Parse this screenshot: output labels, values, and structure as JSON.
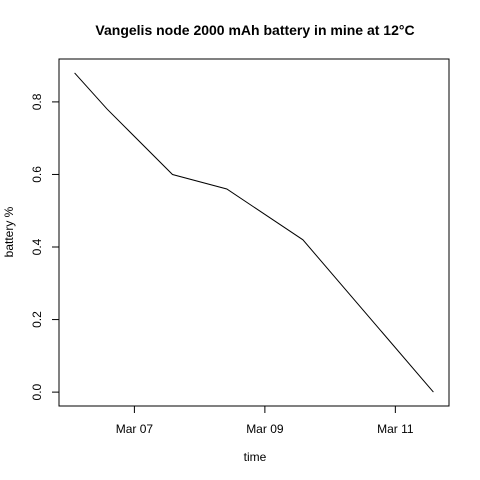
{
  "chart_data": {
    "type": "line",
    "title": "Vangelis node 2000 mAh battery in mine at 12°C",
    "xlabel": "time",
    "ylabel": "battery %",
    "x": [
      "2024-03-06 02:00",
      "2024-03-06 14:00",
      "2024-03-07 14:00",
      "2024-03-08 10:00",
      "2024-03-09 14:00",
      "2024-03-11 14:00"
    ],
    "series": [
      {
        "values": [
          0.88,
          0.78,
          0.6,
          0.56,
          0.42,
          0.0
        ]
      }
    ],
    "xlim": [
      "2024-03-06 02:00",
      "2024-03-11 14:00"
    ],
    "ylim": [
      0.0,
      0.88
    ],
    "x_ticks": [
      {
        "value": "2024-03-07",
        "label": "Mar 07"
      },
      {
        "value": "2024-03-09",
        "label": "Mar 09"
      },
      {
        "value": "2024-03-11",
        "label": "Mar 11"
      }
    ],
    "y_ticks": [
      {
        "value": 0.0,
        "label": "0.0"
      },
      {
        "value": 0.2,
        "label": "0.2"
      },
      {
        "value": 0.4,
        "label": "0.4"
      },
      {
        "value": 0.6,
        "label": "0.6"
      },
      {
        "value": 0.8,
        "label": "0.8"
      }
    ],
    "grid": false,
    "line_color": "#000000"
  }
}
